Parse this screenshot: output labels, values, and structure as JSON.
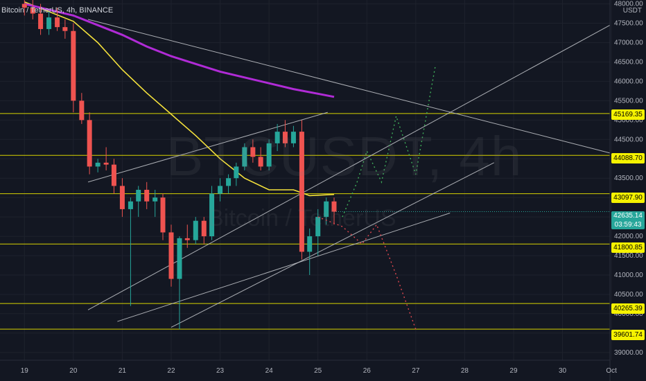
{
  "header": {
    "symbol_line": "Bitcoin / TetherUS, 4h, BINANCE"
  },
  "axis_unit": "USDT",
  "watermark": {
    "symbol": "BTCUSDT, 4h",
    "name": "Bitcoin / TetherUS"
  },
  "current_price": {
    "value": "42635.14",
    "countdown": "03:59:43"
  },
  "colors": {
    "bg": "#131722",
    "up": "#26a69a",
    "down": "#ef5350",
    "ema_fast": "#f5e23c",
    "ema_slow": "#b02bd6",
    "hline": "#d9d400",
    "trend": "#c8cacf",
    "proj_up": "#3fae5a",
    "proj_down": "#e0474f"
  },
  "chart_data": {
    "type": "candlestick",
    "x_ticks": [
      "19",
      "20",
      "21",
      "22",
      "23",
      "24",
      "25",
      "26",
      "27",
      "28",
      "29",
      "30",
      "Oct"
    ],
    "y_ticks": [
      48000,
      47500,
      47000,
      46500,
      46000,
      45500,
      45000,
      44500,
      44000,
      43500,
      43000,
      42500,
      42000,
      41500,
      41000,
      40500,
      40000,
      39500,
      39000
    ],
    "ylim": [
      38800,
      48100
    ],
    "xlim": [
      18.5,
      30.97
    ],
    "horizontal_levels": [
      "45169.35",
      "44088.70",
      "43097.90",
      "41800.85",
      "40265.39",
      "39601.74"
    ],
    "candles": [
      {
        "t": 19.0,
        "o": 48000,
        "h": 48200,
        "l": 47700,
        "c": 47900
      },
      {
        "t": 19.17,
        "o": 47900,
        "h": 48100,
        "l": 47600,
        "c": 47750
      },
      {
        "t": 19.33,
        "o": 47750,
        "h": 48000,
        "l": 47200,
        "c": 47350
      },
      {
        "t": 19.5,
        "o": 47350,
        "h": 47800,
        "l": 47200,
        "c": 47650
      },
      {
        "t": 19.67,
        "o": 47650,
        "h": 47900,
        "l": 47300,
        "c": 47400
      },
      {
        "t": 19.83,
        "o": 47400,
        "h": 47600,
        "l": 47100,
        "c": 47300
      },
      {
        "t": 20.0,
        "o": 47300,
        "h": 47500,
        "l": 45200,
        "c": 45500
      },
      {
        "t": 20.17,
        "o": 45500,
        "h": 45700,
        "l": 44900,
        "c": 45000
      },
      {
        "t": 20.33,
        "o": 45000,
        "h": 45200,
        "l": 43600,
        "c": 43800
      },
      {
        "t": 20.5,
        "o": 43800,
        "h": 44000,
        "l": 43650,
        "c": 43900
      },
      {
        "t": 20.67,
        "o": 43900,
        "h": 44300,
        "l": 43700,
        "c": 43850
      },
      {
        "t": 20.83,
        "o": 43850,
        "h": 44000,
        "l": 43100,
        "c": 43300
      },
      {
        "t": 21.0,
        "o": 43300,
        "h": 43500,
        "l": 42500,
        "c": 42700
      },
      {
        "t": 21.17,
        "o": 42700,
        "h": 43000,
        "l": 40200,
        "c": 42900
      },
      {
        "t": 21.33,
        "o": 42900,
        "h": 43300,
        "l": 42500,
        "c": 43200
      },
      {
        "t": 21.5,
        "o": 43200,
        "h": 43400,
        "l": 42700,
        "c": 42900
      },
      {
        "t": 21.67,
        "o": 42900,
        "h": 43200,
        "l": 42500,
        "c": 43000
      },
      {
        "t": 21.83,
        "o": 43000,
        "h": 43100,
        "l": 41900,
        "c": 42100
      },
      {
        "t": 22.0,
        "o": 42100,
        "h": 42300,
        "l": 40700,
        "c": 40900
      },
      {
        "t": 22.17,
        "o": 40900,
        "h": 42000,
        "l": 39600,
        "c": 41950
      },
      {
        "t": 22.33,
        "o": 41950,
        "h": 42300,
        "l": 41700,
        "c": 41900
      },
      {
        "t": 22.5,
        "o": 41900,
        "h": 42500,
        "l": 41800,
        "c": 42400
      },
      {
        "t": 22.67,
        "o": 42400,
        "h": 42500,
        "l": 41800,
        "c": 42000
      },
      {
        "t": 22.83,
        "o": 42000,
        "h": 43300,
        "l": 41900,
        "c": 43100
      },
      {
        "t": 23.0,
        "o": 43100,
        "h": 43500,
        "l": 42900,
        "c": 43300
      },
      {
        "t": 23.17,
        "o": 43300,
        "h": 43600,
        "l": 43100,
        "c": 43500
      },
      {
        "t": 23.33,
        "o": 43500,
        "h": 43900,
        "l": 43300,
        "c": 43800
      },
      {
        "t": 23.5,
        "o": 43800,
        "h": 44400,
        "l": 43700,
        "c": 44300
      },
      {
        "t": 23.67,
        "o": 44300,
        "h": 44500,
        "l": 43900,
        "c": 44050
      },
      {
        "t": 23.83,
        "o": 44050,
        "h": 44300,
        "l": 43700,
        "c": 43800
      },
      {
        "t": 24.0,
        "o": 43800,
        "h": 44500,
        "l": 43700,
        "c": 44400
      },
      {
        "t": 24.17,
        "o": 44400,
        "h": 44900,
        "l": 44200,
        "c": 44700
      },
      {
        "t": 24.33,
        "o": 44700,
        "h": 45000,
        "l": 44300,
        "c": 44400
      },
      {
        "t": 24.5,
        "o": 44400,
        "h": 44850,
        "l": 44300,
        "c": 44700
      },
      {
        "t": 24.67,
        "o": 44700,
        "h": 45000,
        "l": 41400,
        "c": 41600
      },
      {
        "t": 24.83,
        "o": 41600,
        "h": 42200,
        "l": 41000,
        "c": 42000
      },
      {
        "t": 25.0,
        "o": 42000,
        "h": 42700,
        "l": 41500,
        "c": 42500
      },
      {
        "t": 25.17,
        "o": 42500,
        "h": 43000,
        "l": 42300,
        "c": 42900
      },
      {
        "t": 25.33,
        "o": 42900,
        "h": 43000,
        "l": 42300,
        "c": 42635
      }
    ],
    "series": [
      {
        "points": [
          [
            19.0,
            48050
          ],
          [
            19.5,
            47800
          ],
          [
            20.0,
            47550
          ],
          [
            20.5,
            47000
          ],
          [
            21.0,
            46300
          ],
          [
            21.5,
            45700
          ],
          [
            22.0,
            45150
          ],
          [
            22.5,
            44600
          ],
          [
            23.0,
            44000
          ],
          [
            23.5,
            43500
          ],
          [
            24.0,
            43200
          ],
          [
            24.5,
            43200
          ],
          [
            24.83,
            43050
          ],
          [
            25.33,
            43080
          ]
        ]
      },
      {
        "points": [
          [
            19.0,
            48000
          ],
          [
            20.0,
            47700
          ],
          [
            20.5,
            47450
          ],
          [
            21.0,
            47200
          ],
          [
            21.5,
            46900
          ],
          [
            22.0,
            46650
          ],
          [
            22.5,
            46450
          ],
          [
            23.0,
            46250
          ],
          [
            23.5,
            46100
          ],
          [
            24.0,
            45950
          ],
          [
            24.5,
            45800
          ],
          [
            25.0,
            45680
          ],
          [
            25.33,
            45600
          ]
        ]
      }
    ],
    "trendlines": [
      [
        [
          20.3,
          40100
        ],
        [
          30.97,
          47450
        ]
      ],
      [
        [
          20.3,
          43400
        ],
        [
          25.2,
          45200
        ]
      ],
      [
        [
          20.3,
          47600
        ],
        [
          30.97,
          44150
        ]
      ],
      [
        [
          20.9,
          39800
        ],
        [
          27.7,
          42600
        ]
      ],
      [
        [
          22.0,
          39650
        ],
        [
          28.6,
          43900
        ]
      ]
    ],
    "projection_up": [
      [
        25.5,
        42500
      ],
      [
        25.8,
        43400
      ],
      [
        26.0,
        44200
      ],
      [
        26.3,
        43400
      ],
      [
        26.6,
        45100
      ],
      [
        27.0,
        43600
      ],
      [
        27.4,
        46400
      ]
    ],
    "projection_down": [
      [
        25.0,
        42500
      ],
      [
        25.5,
        42250
      ],
      [
        25.9,
        41800
      ],
      [
        26.2,
        42300
      ],
      [
        26.6,
        41000
      ],
      [
        27.0,
        39600
      ]
    ]
  }
}
